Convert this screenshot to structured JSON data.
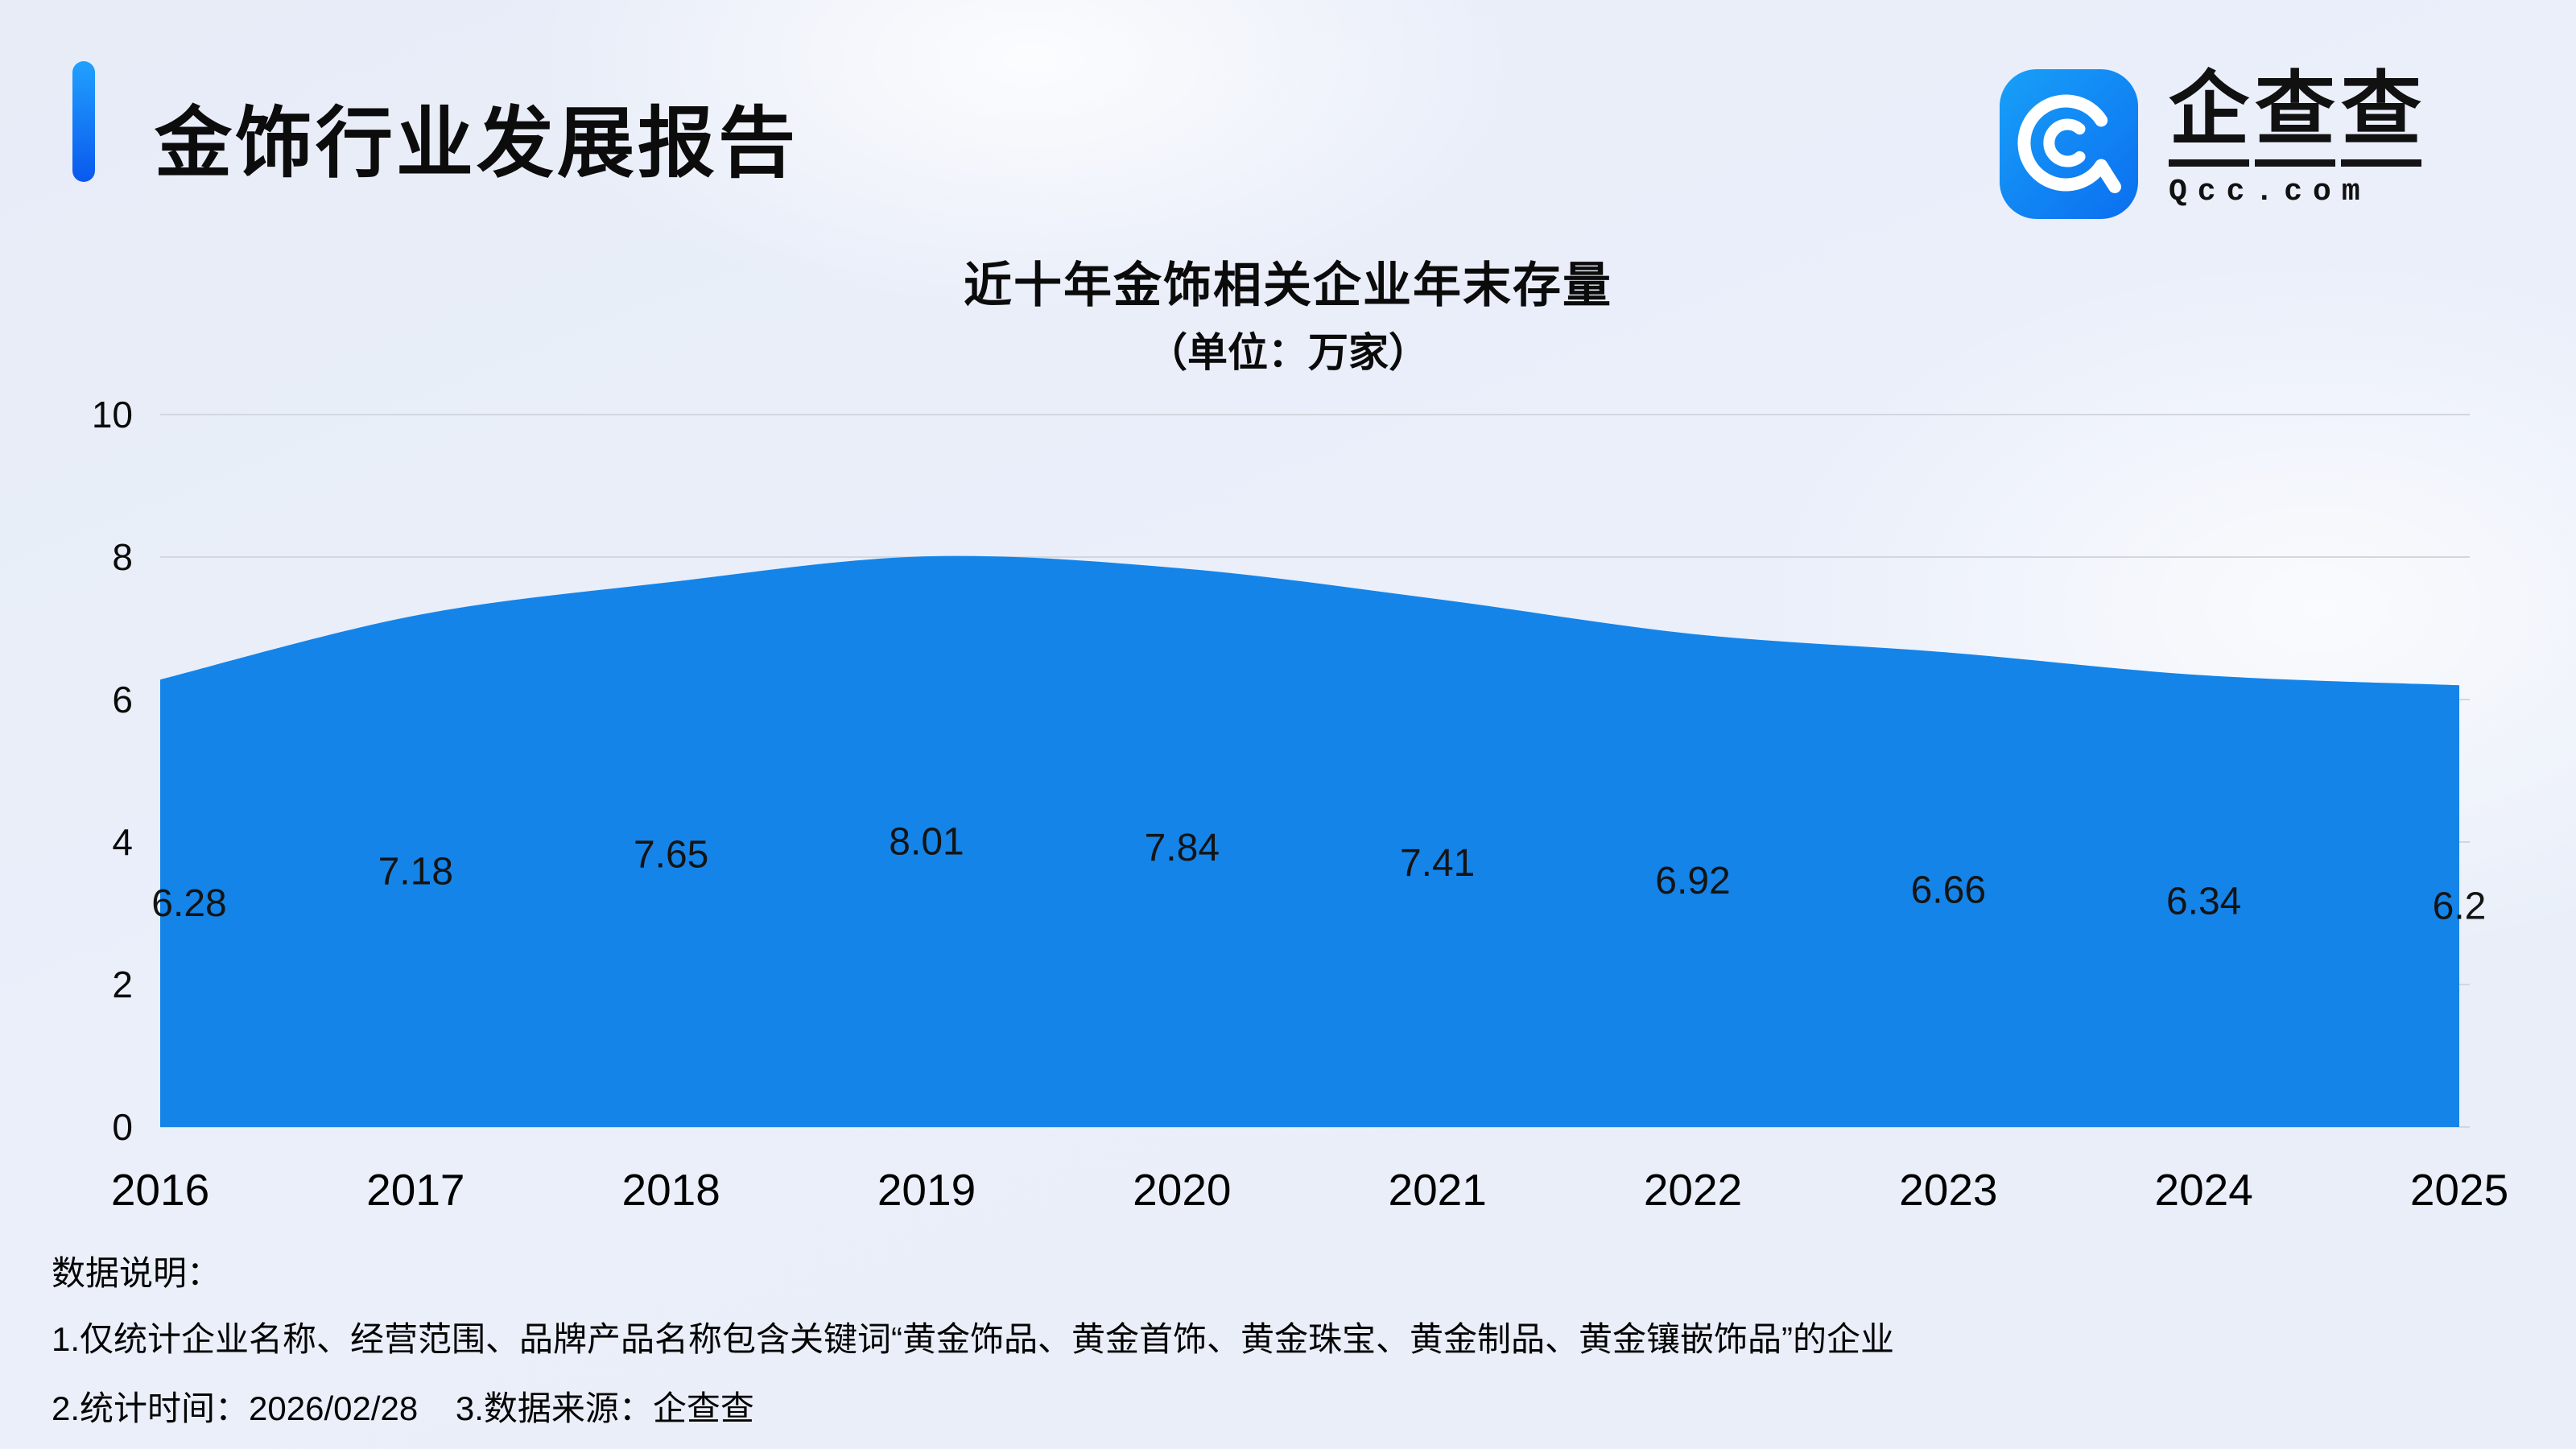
{
  "header": {
    "title": "金饰行业发展报告",
    "logo": {
      "icon": "qcc-magnifier-icon",
      "cn": "企查查",
      "cn_chars": [
        "企",
        "查",
        "查"
      ],
      "domain": "Qcc.com"
    }
  },
  "chart": {
    "title": "近十年金饰相关企业年末存量",
    "subtitle": "（单位：万家）"
  },
  "chart_data": {
    "type": "area",
    "title": "近十年金饰相关企业年末存量",
    "subtitle": "（单位：万家）",
    "categories": [
      "2016",
      "2017",
      "2018",
      "2019",
      "2020",
      "2021",
      "2022",
      "2023",
      "2024",
      "2025"
    ],
    "values": [
      6.28,
      7.18,
      7.65,
      8.01,
      7.84,
      7.41,
      6.92,
      6.66,
      6.34,
      6.2
    ],
    "xlabel": "",
    "ylabel": "",
    "ylim": [
      0,
      10
    ],
    "yticks": [
      0,
      2,
      4,
      6,
      8,
      10
    ],
    "grid": true,
    "legend": "none",
    "area_color": "#1584E8",
    "grid_color": "#d3d6dd",
    "label_color": "#141414",
    "tick_color": "#0a0a0a"
  },
  "notes": {
    "heading": "数据说明：",
    "line1": "1.仅统计企业名称、经营范围、品牌产品名称包含关键词“黄金饰品、黄金首饰、黄金珠宝、黄金制品、黄金镶嵌饰品”的企业",
    "line2": "2.统计时间：2026/02/28    3.数据来源：企查查"
  },
  "colors": {
    "accent_blue": "#0d6ef0",
    "accent_blue_light": "#21a1fe",
    "background": "#e9eef8"
  }
}
